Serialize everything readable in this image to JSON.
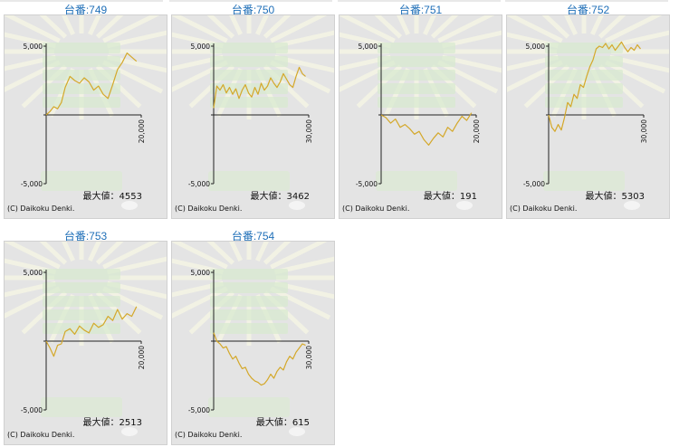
{
  "copyright": "(C) Daikoku Denki.",
  "max_label_prefix": "最大値：",
  "colors": {
    "title": "#1f6fb8",
    "line": "#d4a82a",
    "panel": "#e4e4e4",
    "axis": "#222222"
  },
  "chart_data": [
    {
      "type": "line",
      "title": "台番:749",
      "yticks": [
        "5,000",
        "-5,000"
      ],
      "xtick": "20,000",
      "ylim": [
        -5000,
        5000
      ],
      "xlim": [
        0,
        20000
      ],
      "max_value": "4553",
      "x": [
        0,
        800,
        1600,
        2400,
        3200,
        4000,
        5000,
        6000,
        7000,
        8000,
        9000,
        10000,
        11000,
        12000,
        13000,
        14000,
        15000,
        16000,
        17000,
        18000,
        19000
      ],
      "y": [
        0,
        250,
        600,
        450,
        900,
        2000,
        2800,
        2500,
        2300,
        2700,
        2400,
        1800,
        2100,
        1500,
        1200,
        2200,
        3300,
        3800,
        4500,
        4200,
        3900
      ]
    },
    {
      "type": "line",
      "title": "台番:750",
      "yticks": [
        "5,000",
        "-5,000"
      ],
      "xtick": "30,000",
      "ylim": [
        -5000,
        5000
      ],
      "xlim": [
        0,
        30000
      ],
      "max_value": "3462",
      "x": [
        0,
        1000,
        2000,
        3000,
        4000,
        5000,
        6000,
        7000,
        8000,
        9000,
        10000,
        11000,
        12000,
        13000,
        14000,
        15000,
        16000,
        17000,
        18000,
        19000,
        20000,
        21000,
        22000,
        23000,
        24000,
        25000,
        26000,
        27000,
        28000,
        29000
      ],
      "y": [
        500,
        2100,
        1800,
        2200,
        1600,
        2000,
        1500,
        1900,
        1200,
        1800,
        2200,
        1600,
        1300,
        2000,
        1500,
        2300,
        1800,
        2100,
        2700,
        2300,
        2000,
        2400,
        3000,
        2600,
        2200,
        2000,
        2800,
        3462,
        3000,
        2800
      ]
    },
    {
      "type": "line",
      "title": "台番:751",
      "yticks": [
        "5,000",
        "-5,000"
      ],
      "xtick": "20,000",
      "ylim": [
        -5000,
        5000
      ],
      "xlim": [
        0,
        20000
      ],
      "max_value": "191",
      "x": [
        0,
        1000,
        2000,
        3000,
        4000,
        5000,
        6000,
        7000,
        8000,
        9000,
        10000,
        11000,
        12000,
        13000,
        14000,
        15000,
        16000,
        17000,
        18000,
        19000
      ],
      "y": [
        0,
        -200,
        -600,
        -300,
        -900,
        -700,
        -1000,
        -1400,
        -1200,
        -1800,
        -2200,
        -1700,
        -1300,
        -1600,
        -900,
        -1200,
        -600,
        -100,
        -400,
        150
      ]
    },
    {
      "type": "line",
      "title": "台番:752",
      "yticks": [
        "5,000",
        "-5,000"
      ],
      "xtick": "30,000",
      "ylim": [
        -5000,
        5000
      ],
      "xlim": [
        0,
        30000
      ],
      "max_value": "5303",
      "x": [
        0,
        1000,
        2000,
        3000,
        4000,
        5000,
        6000,
        7000,
        8000,
        9000,
        10000,
        11000,
        12000,
        13000,
        14000,
        15000,
        16000,
        17000,
        18000,
        19000,
        20000,
        21000,
        22000,
        23000,
        24000,
        25000,
        26000,
        27000,
        28000,
        29000
      ],
      "y": [
        0,
        -900,
        -1200,
        -700,
        -1100,
        -200,
        900,
        600,
        1500,
        1200,
        2200,
        2000,
        2800,
        3500,
        4000,
        4800,
        5000,
        4900,
        5200,
        4800,
        5100,
        4700,
        5000,
        5303,
        4900,
        4600,
        4900,
        4700,
        5100,
        4800
      ]
    },
    {
      "type": "line",
      "title": "台番:753",
      "yticks": [
        "5,000",
        "-5,000"
      ],
      "xtick": "20,000",
      "ylim": [
        -5000,
        5000
      ],
      "xlim": [
        0,
        20000
      ],
      "max_value": "2513",
      "x": [
        0,
        800,
        1600,
        2400,
        3200,
        4000,
        5000,
        6000,
        7000,
        8000,
        9000,
        10000,
        11000,
        12000,
        13000,
        14000,
        15000,
        16000,
        17000,
        18000,
        19000
      ],
      "y": [
        0,
        -500,
        -1100,
        -300,
        -200,
        700,
        900,
        500,
        1100,
        800,
        600,
        1300,
        1000,
        1200,
        1800,
        1500,
        2300,
        1600,
        2000,
        1800,
        2513
      ]
    },
    {
      "type": "line",
      "title": "台番:754",
      "yticks": [
        "5,000",
        "-5,000"
      ],
      "xtick": "30,000",
      "ylim": [
        -5000,
        5000
      ],
      "xlim": [
        0,
        30000
      ],
      "max_value": "615",
      "x": [
        0,
        1000,
        2000,
        3000,
        4000,
        5000,
        6000,
        7000,
        8000,
        9000,
        10000,
        11000,
        12000,
        13000,
        14000,
        15000,
        16000,
        17000,
        18000,
        19000,
        20000,
        21000,
        22000,
        23000,
        24000,
        25000,
        26000,
        27000,
        28000,
        29000
      ],
      "y": [
        615,
        0,
        -200,
        -500,
        -400,
        -900,
        -1300,
        -1100,
        -1600,
        -2000,
        -1900,
        -2400,
        -2700,
        -2900,
        -3000,
        -3200,
        -3100,
        -2800,
        -2400,
        -2700,
        -2200,
        -1900,
        -2100,
        -1500,
        -1100,
        -1300,
        -800,
        -500,
        -200,
        -300
      ]
    }
  ]
}
